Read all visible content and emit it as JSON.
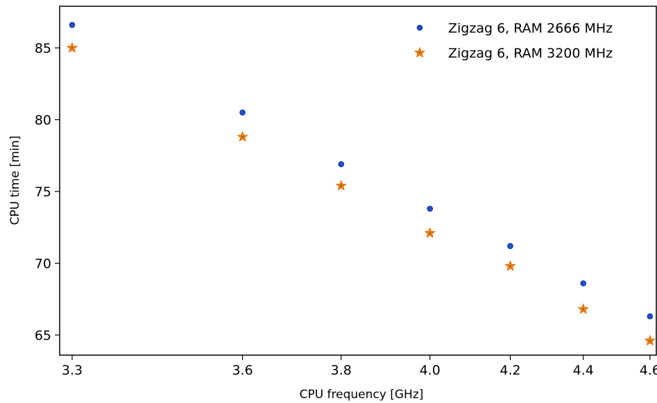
{
  "chart_data": {
    "type": "scatter",
    "title": "",
    "xlabel": "CPU frequency [GHz]",
    "ylabel": "CPU time [min]",
    "x_scale": "reciprocal",
    "xlim": [
      3.28,
      4.62
    ],
    "ylim": [
      63.6,
      87.9
    ],
    "x_ticks": [
      "3.3",
      "3.6",
      "3.8",
      "4.0",
      "4.2",
      "4.4",
      "4.6"
    ],
    "y_ticks": [
      "65",
      "70",
      "75",
      "80",
      "85"
    ],
    "grid": false,
    "legend_position": "top-right",
    "x": [
      3.3,
      3.6,
      3.8,
      4.0,
      4.2,
      4.4,
      4.6
    ],
    "series": [
      {
        "name": "Zigzag 6, RAM 2666 MHz",
        "marker": "circle",
        "color": "#1f4fd6",
        "values": [
          86.6,
          80.5,
          76.9,
          73.8,
          71.2,
          68.6,
          66.3
        ]
      },
      {
        "name": "Zigzag 6, RAM 3200 MHz",
        "marker": "star",
        "color": "#ff7f0e",
        "values": [
          85.0,
          78.8,
          75.4,
          72.1,
          69.8,
          66.8,
          64.6
        ]
      }
    ]
  }
}
